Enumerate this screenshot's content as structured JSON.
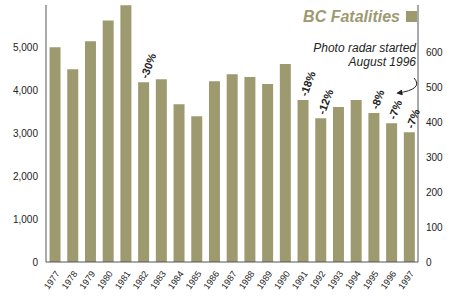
{
  "chart_data": {
    "type": "bar",
    "categories": [
      "1977",
      "1978",
      "1979",
      "1980",
      "1981",
      "1982",
      "1983",
      "1984",
      "1985",
      "1986",
      "1987",
      "1988",
      "1989",
      "1990",
      "1991",
      "1992",
      "1993",
      "1994",
      "1995",
      "1996",
      "1997"
    ],
    "series": [
      {
        "name": "BC Fatalities",
        "color": "#9e9a70",
        "axis": "y2",
        "values": [
          614,
          551,
          631,
          691,
          734,
          514,
          523,
          451,
          417,
          517,
          537,
          529,
          509,
          566,
          463,
          411,
          443,
          463,
          426,
          397,
          371
        ]
      }
    ],
    "ylim": [
      0,
      6000
    ],
    "yticks": [
      0,
      {
        "value": 1000,
        "label": "1,000"
      },
      {
        "value": 2000,
        "label": "2,000"
      },
      {
        "value": 3000,
        "label": "3,000"
      },
      {
        "value": 4000,
        "label": "4,000"
      },
      {
        "value": 5000,
        "label": "5,000"
      }
    ],
    "y2lim": [
      0,
      735
    ],
    "y2ticks": [
      0,
      100,
      200,
      300,
      400,
      500,
      600
    ],
    "annotations": [
      {
        "category": "1982",
        "text": "-30%"
      },
      {
        "category": "1991",
        "text": "-18%"
      },
      {
        "category": "1992",
        "text": "-12%"
      },
      {
        "category": "1995",
        "text": "-8%"
      },
      {
        "category": "1996",
        "text": "-7%"
      },
      {
        "category": "1997",
        "text": "-7%"
      }
    ],
    "callout": {
      "category": "1996",
      "text": [
        "Photo radar started",
        "August 1996"
      ]
    },
    "legend": "top right",
    "grid": false
  }
}
